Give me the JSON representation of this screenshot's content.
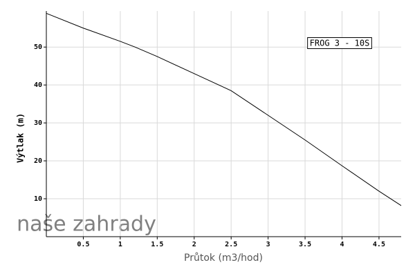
{
  "chart_data": {
    "type": "line",
    "x_label": "Průtok (m3/hod)",
    "y_label": "Výtlak (m)",
    "watermark": "naše zahrady",
    "x": [
      0,
      0.5,
      1,
      1.2,
      1.5,
      2,
      2.5,
      3,
      3.5,
      4,
      4.5,
      4.8
    ],
    "series": [
      {
        "name": "FROG 3 - 10S",
        "color": "#000000",
        "values": [
          58.9,
          55,
          51.5,
          50,
          47.5,
          43,
          38.5,
          32,
          25.5,
          18.7,
          12,
          8.2
        ]
      }
    ],
    "xlim": [
      0,
      4.8
    ],
    "xticks": [
      0.5,
      1,
      1.5,
      2,
      2.5,
      3,
      3.5,
      4,
      4.5
    ],
    "ylim": [
      0,
      59.5
    ],
    "yticks": [
      10,
      20,
      30,
      40,
      50
    ],
    "grid": true,
    "legend": "upper right"
  }
}
